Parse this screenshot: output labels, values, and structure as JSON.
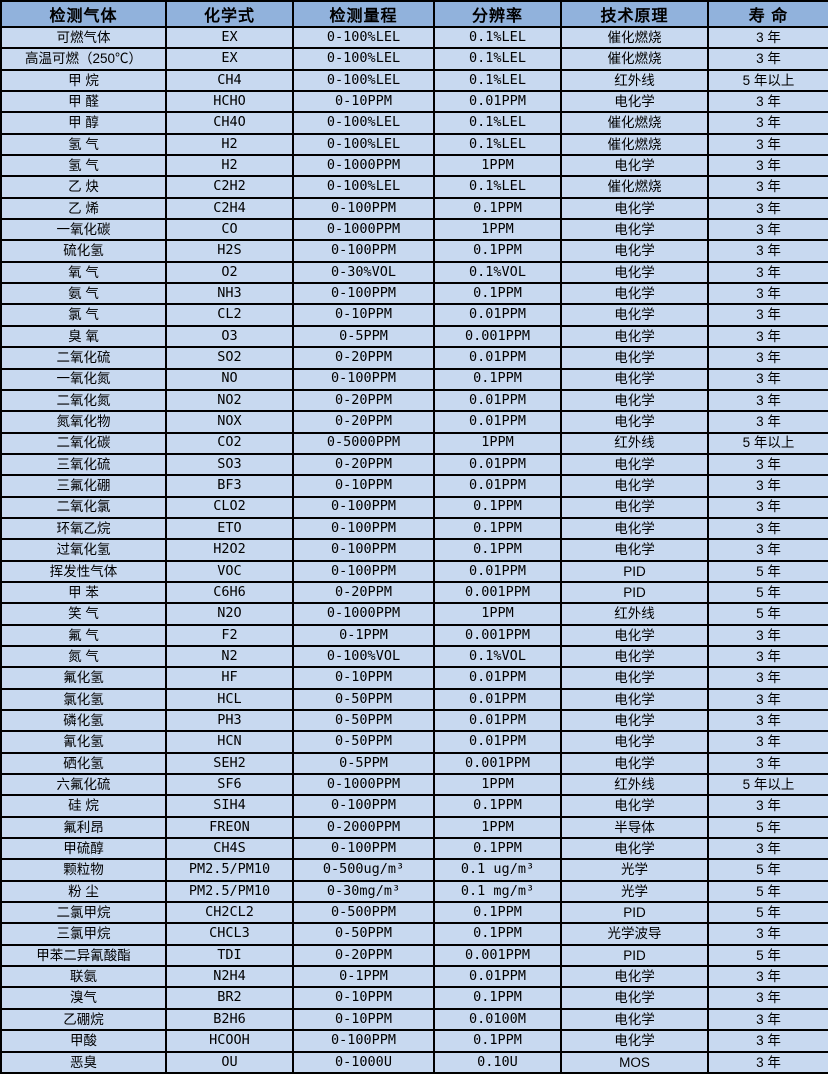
{
  "table": {
    "columns": [
      "检测气体",
      "化学式",
      "检测量程",
      "分辨率",
      "技术原理",
      "寿  命"
    ],
    "rows": [
      [
        "可燃气体",
        "EX",
        "0-100%LEL",
        "0.1%LEL",
        "催化燃烧",
        "3 年"
      ],
      [
        "高温可燃（250℃）",
        "EX",
        "0-100%LEL",
        "0.1%LEL",
        "催化燃烧",
        "3 年"
      ],
      [
        "甲 烷",
        "CH4",
        "0-100%LEL",
        "0.1%LEL",
        "红外线",
        "5 年以上"
      ],
      [
        "甲 醛",
        "HCHO",
        "0-10PPM",
        "0.01PPM",
        "电化学",
        "3 年"
      ],
      [
        "甲 醇",
        "CH4O",
        "0-100%LEL",
        "0.1%LEL",
        "催化燃烧",
        "3 年"
      ],
      [
        "氢 气",
        "H2",
        "0-100%LEL",
        "0.1%LEL",
        "催化燃烧",
        "3 年"
      ],
      [
        "氢 气",
        "H2",
        "0-1000PPM",
        "1PPM",
        "电化学",
        "3 年"
      ],
      [
        "乙 炔",
        "C2H2",
        "0-100%LEL",
        "0.1%LEL",
        "催化燃烧",
        "3 年"
      ],
      [
        "乙 烯",
        "C2H4",
        "0-100PPM",
        "0.1PPM",
        "电化学",
        "3 年"
      ],
      [
        "一氧化碳",
        "CO",
        "0-1000PPM",
        "1PPM",
        "电化学",
        "3 年"
      ],
      [
        "硫化氢",
        "H2S",
        "0-100PPM",
        "0.1PPM",
        "电化学",
        "3 年"
      ],
      [
        "氧 气",
        "O2",
        "0-30%VOL",
        "0.1%VOL",
        "电化学",
        "3 年"
      ],
      [
        "氨 气",
        "NH3",
        "0-100PPM",
        "0.1PPM",
        "电化学",
        "3 年"
      ],
      [
        "氯 气",
        "CL2",
        "0-10PPM",
        "0.01PPM",
        "电化学",
        "3 年"
      ],
      [
        "臭 氧",
        "O3",
        "0-5PPM",
        "0.001PPM",
        "电化学",
        "3 年"
      ],
      [
        "二氧化硫",
        "SO2",
        "0-20PPM",
        "0.01PPM",
        "电化学",
        "3 年"
      ],
      [
        "一氧化氮",
        "NO",
        "0-100PPM",
        "0.1PPM",
        "电化学",
        "3 年"
      ],
      [
        "二氧化氮",
        "NO2",
        "0-20PPM",
        "0.01PPM",
        "电化学",
        "3 年"
      ],
      [
        "氮氧化物",
        "NOX",
        "0-20PPM",
        "0.01PPM",
        "电化学",
        "3 年"
      ],
      [
        "二氧化碳",
        "CO2",
        "0-5000PPM",
        "1PPM",
        "红外线",
        "5 年以上"
      ],
      [
        "三氧化硫",
        "SO3",
        "0-20PPM",
        "0.01PPM",
        "电化学",
        "3 年"
      ],
      [
        "三氟化硼",
        "BF3",
        "0-10PPM",
        "0.01PPM",
        "电化学",
        "3 年"
      ],
      [
        "二氧化氯",
        "CLO2",
        "0-100PPM",
        "0.1PPM",
        "电化学",
        "3 年"
      ],
      [
        "环氧乙烷",
        "ETO",
        "0-100PPM",
        "0.1PPM",
        "电化学",
        "3 年"
      ],
      [
        "过氧化氢",
        "H2O2",
        "0-100PPM",
        "0.1PPM",
        "电化学",
        "3 年"
      ],
      [
        "挥发性气体",
        "VOC",
        "0-100PPM",
        "0.01PPM",
        "PID",
        "5 年"
      ],
      [
        "甲 苯",
        "C6H6",
        "0-20PPM",
        "0.001PPM",
        "PID",
        "5 年"
      ],
      [
        "笑 气",
        "N2O",
        "0-1000PPM",
        "1PPM",
        "红外线",
        "5 年"
      ],
      [
        "氟 气",
        "F2",
        "0-1PPM",
        "0.001PPM",
        "电化学",
        "3 年"
      ],
      [
        "氮 气",
        "N2",
        "0-100%VOL",
        "0.1%VOL",
        "电化学",
        "3 年"
      ],
      [
        "氟化氢",
        "HF",
        "0-10PPM",
        "0.01PPM",
        "电化学",
        "3 年"
      ],
      [
        "氯化氢",
        "HCL",
        "0-50PPM",
        "0.01PPM",
        "电化学",
        "3 年"
      ],
      [
        "磷化氢",
        "PH3",
        "0-50PPM",
        "0.01PPM",
        "电化学",
        "3 年"
      ],
      [
        "氰化氢",
        "HCN",
        "0-50PPM",
        "0.01PPM",
        "电化学",
        "3 年"
      ],
      [
        "硒化氢",
        "SEH2",
        "0-5PPM",
        "0.001PPM",
        "电化学",
        "3 年"
      ],
      [
        "六氟化硫",
        "SF6",
        "0-1000PPM",
        "1PPM",
        "红外线",
        "5 年以上"
      ],
      [
        "硅 烷",
        "SIH4",
        "0-100PPM",
        "0.1PPM",
        "电化学",
        "3 年"
      ],
      [
        "氟利昂",
        "FREON",
        "0-2000PPM",
        "1PPM",
        "半导体",
        "5 年"
      ],
      [
        "甲硫醇",
        "CH4S",
        "0-100PPM",
        "0.1PPM",
        "电化学",
        "3 年"
      ],
      [
        "颗粒物",
        "PM2.5/PM10",
        "0-500ug/m³",
        "0.1 ug/m³",
        "光学",
        "5 年"
      ],
      [
        "粉 尘",
        "PM2.5/PM10",
        "0-30mg/m³",
        "0.1 mg/m³",
        "光学",
        "5 年"
      ],
      [
        "二氯甲烷",
        "CH2CL2",
        "0-500PPM",
        "0.1PPM",
        "PID",
        "5 年"
      ],
      [
        "三氯甲烷",
        "CHCL3",
        "0-50PPM",
        "0.1PPM",
        "光学波导",
        "3 年"
      ],
      [
        "甲苯二异氰酸酯",
        "TDI",
        "0-20PPM",
        "0.001PPM",
        "PID",
        "5 年"
      ],
      [
        "联氨",
        "N2H4",
        "0-1PPM",
        "0.01PPM",
        "电化学",
        "3 年"
      ],
      [
        "溴气",
        "BR2",
        "0-10PPM",
        "0.1PPM",
        "电化学",
        "3 年"
      ],
      [
        "乙硼烷",
        "B2H6",
        "0-10PPM",
        "0.0100M",
        "电化学",
        "3 年"
      ],
      [
        "甲酸",
        "HCOOH",
        "0-100PPM",
        "0.1PPM",
        "电化学",
        "3 年"
      ],
      [
        "恶臭",
        "OU",
        "0-1000U",
        "0.10U",
        "MOS",
        "3 年"
      ]
    ],
    "cell_names": [
      "gas-name",
      "chemical-formula",
      "detection-range",
      "resolution",
      "technology",
      "lifespan"
    ]
  },
  "colors": {
    "header_bg": "#91B2DC",
    "row_bg": "#C8D9F0",
    "border": "#000000",
    "text": "#000000"
  }
}
